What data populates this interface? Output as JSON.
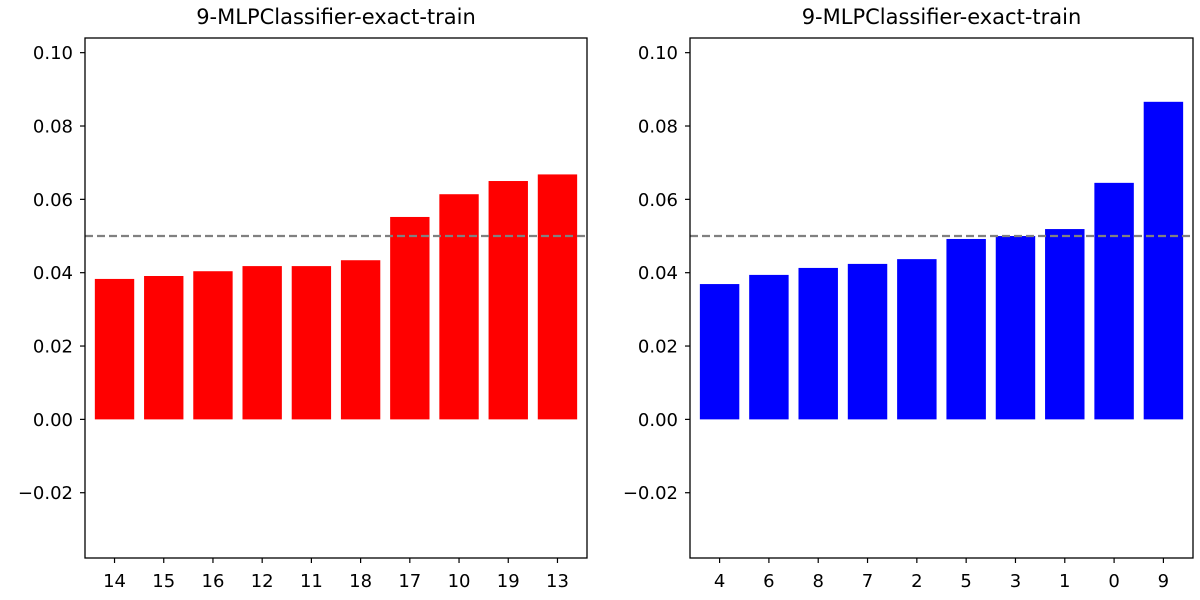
{
  "chart_data": [
    {
      "type": "bar",
      "title": "9-MLPClassifier-exact-train",
      "xlabel": "",
      "ylabel": "",
      "categories": [
        "14",
        "15",
        "16",
        "12",
        "11",
        "18",
        "17",
        "10",
        "19",
        "13"
      ],
      "values": [
        0.0383,
        0.0391,
        0.0404,
        0.0418,
        0.0418,
        0.0434,
        0.0552,
        0.0614,
        0.065,
        0.0668
      ],
      "ylim": [
        -0.0378,
        0.104
      ],
      "yticks": [
        -0.02,
        0.0,
        0.02,
        0.04,
        0.06,
        0.08,
        0.1
      ],
      "ytick_labels": [
        "−0.02",
        "0.00",
        "0.02",
        "0.04",
        "0.06",
        "0.08",
        "0.10"
      ],
      "reference_line": 0.05,
      "bar_color": "#ff0000",
      "reference_line_color": "#808080",
      "grid": false,
      "legend": "none"
    },
    {
      "type": "bar",
      "title": "9-MLPClassifier-exact-train",
      "xlabel": "",
      "ylabel": "",
      "categories": [
        "4",
        "6",
        "8",
        "7",
        "2",
        "5",
        "3",
        "1",
        "0",
        "9"
      ],
      "values": [
        0.0369,
        0.0394,
        0.0413,
        0.0424,
        0.0437,
        0.0492,
        0.05,
        0.0519,
        0.0645,
        0.0866
      ],
      "ylim": [
        -0.0378,
        0.104
      ],
      "yticks": [
        -0.02,
        0.0,
        0.02,
        0.04,
        0.06,
        0.08,
        0.1
      ],
      "ytick_labels": [
        "−0.02",
        "0.00",
        "0.02",
        "0.04",
        "0.06",
        "0.08",
        "0.10"
      ],
      "reference_line": 0.05,
      "bar_color": "#0000ff",
      "reference_line_color": "#808080",
      "grid": false,
      "legend": "none"
    }
  ]
}
